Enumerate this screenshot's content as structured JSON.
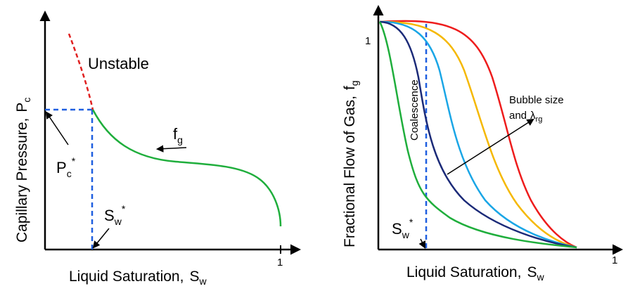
{
  "left": {
    "x_axis_label": "Liquid Saturation,",
    "x_axis_symbol": "S",
    "x_axis_sub": "w",
    "y_axis_label": "Capillary Pressure,",
    "y_axis_symbol": "P",
    "y_axis_sub": "c",
    "x_tick": "1",
    "unstable_label": "Unstable",
    "pc_star_symbol": "P",
    "pc_star_sub": "c",
    "pc_star_sup": "*",
    "sw_star_symbol": "S",
    "sw_star_sub": "w",
    "sw_star_sup": "*",
    "fg_symbol": "f",
    "fg_sub": "g"
  },
  "right": {
    "x_axis_label": "Liquid Saturation,",
    "x_axis_symbol": "S",
    "x_axis_sub": "w",
    "y_axis_label": "Fractional Flow of Gas,",
    "y_axis_symbol": "f",
    "y_axis_sub": "g",
    "y_tick": "1",
    "x_tick": "1",
    "coalescence_label": "Coalescence",
    "bubble_line1": "Bubble size",
    "bubble_line2_prefix": "and",
    "bubble_symbol": "λ",
    "bubble_sub": "rg",
    "sw_star_symbol": "S",
    "sw_star_sub": "w",
    "sw_star_sup": "*"
  },
  "colors": {
    "axis": "#000000",
    "stable_curve": "#1fae3c",
    "unstable_curve": "#e02020",
    "dashed_guide": "#1f5fe0",
    "curve_red": "#ee1c1c",
    "curve_yellow": "#f5b800",
    "curve_cyan": "#1aa6e6",
    "curve_navy": "#1b2a78",
    "curve_green": "#1fae3c"
  }
}
